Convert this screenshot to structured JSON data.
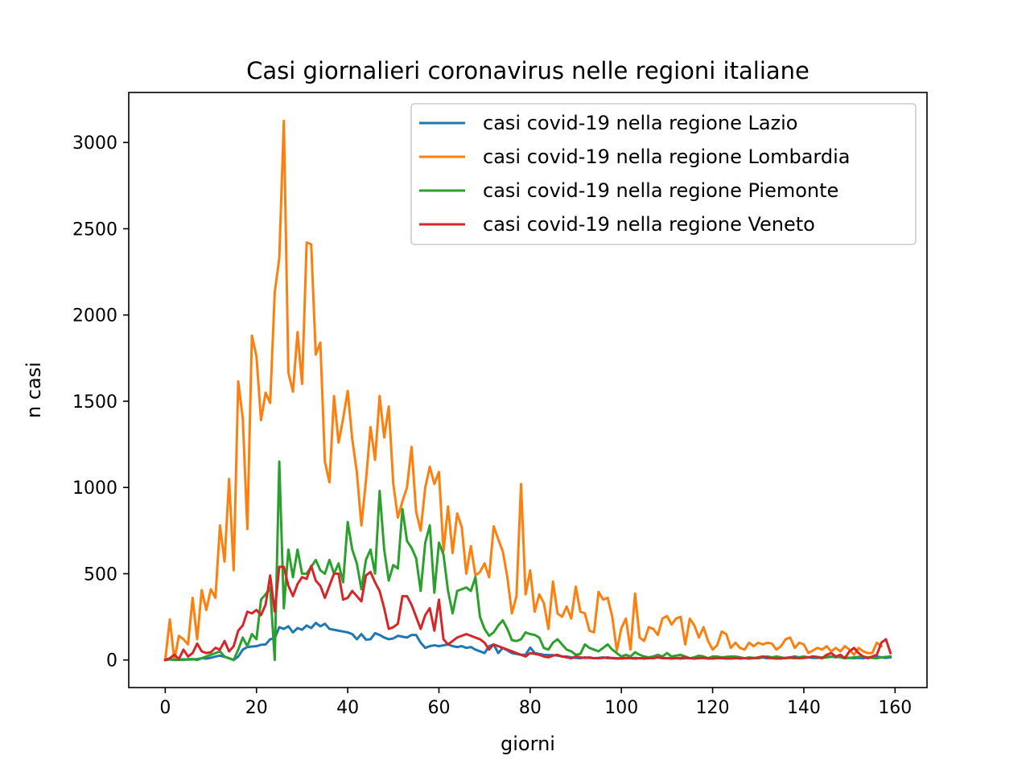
{
  "chart_data": {
    "type": "line",
    "title": "Casi giornalieri coronavirus nelle regioni italiane",
    "xlabel": "giorni",
    "ylabel": "n casi",
    "xlim": [
      -8,
      167
    ],
    "ylim": [
      -160,
      3290
    ],
    "xticks": [
      0,
      20,
      40,
      60,
      80,
      100,
      120,
      140,
      160
    ],
    "yticks": [
      0,
      500,
      1000,
      1500,
      2000,
      2500,
      3000
    ],
    "grid": false,
    "legend_position": "top-right",
    "series": [
      {
        "name": "casi covid-19 nella regione Lazio",
        "color": "#1f77b4",
        "values": [
          0,
          3,
          0,
          2,
          4,
          2,
          3,
          5,
          10,
          8,
          13,
          20,
          25,
          18,
          10,
          0,
          20,
          60,
          75,
          78,
          80,
          88,
          90,
          120,
          125,
          190,
          180,
          195,
          160,
          185,
          175,
          200,
          185,
          215,
          195,
          210,
          180,
          175,
          170,
          165,
          160,
          150,
          120,
          150,
          118,
          120,
          155,
          145,
          130,
          120,
          125,
          140,
          135,
          130,
          145,
          145,
          100,
          70,
          80,
          85,
          80,
          85,
          90,
          80,
          75,
          80,
          70,
          75,
          60,
          50,
          40,
          80,
          90,
          40,
          70,
          55,
          40,
          35,
          30,
          30,
          72,
          40,
          35,
          30,
          28,
          28,
          25,
          20,
          20,
          15,
          12,
          10,
          15,
          12,
          10,
          12,
          15,
          10,
          12,
          10,
          8,
          10,
          10,
          12,
          10,
          8,
          10,
          12,
          15,
          10,
          10,
          12,
          10,
          8,
          10,
          10,
          12,
          10,
          12,
          8,
          10,
          12,
          10,
          8,
          10,
          12,
          8,
          10,
          10,
          12,
          10,
          14,
          10,
          12,
          10,
          8,
          12,
          15,
          20,
          15,
          18,
          15,
          12,
          12,
          15,
          18,
          20,
          15,
          20,
          15,
          12,
          10,
          12,
          10,
          15,
          18,
          20,
          15,
          12,
          15
        ]
      },
      {
        "name": "casi covid-19 nella regione Lombardia",
        "color": "#ff7f0e",
        "values": [
          0,
          235,
          0,
          140,
          120,
          90,
          360,
          120,
          405,
          290,
          410,
          360,
          780,
          570,
          1050,
          520,
          1615,
          1400,
          760,
          1880,
          1760,
          1390,
          1550,
          1490,
          2130,
          2330,
          3125,
          1665,
          1555,
          1900,
          1600,
          2420,
          2410,
          1770,
          1840,
          1150,
          1030,
          1530,
          1260,
          1400,
          1560,
          1280,
          1090,
          780,
          1040,
          1350,
          1160,
          1530,
          1290,
          1470,
          1020,
          825,
          920,
          1000,
          1235,
          860,
          750,
          1000,
          1120,
          1020,
          1090,
          630,
          890,
          620,
          850,
          770,
          500,
          660,
          490,
          510,
          560,
          480,
          775,
          700,
          630,
          480,
          270,
          370,
          1020,
          380,
          520,
          280,
          380,
          330,
          180,
          455,
          270,
          250,
          310,
          240,
          425,
          280,
          270,
          170,
          160,
          395,
          350,
          360,
          250,
          55,
          185,
          240,
          60,
          385,
          130,
          110,
          190,
          180,
          145,
          240,
          255,
          205,
          240,
          250,
          90,
          240,
          200,
          130,
          190,
          110,
          60,
          85,
          165,
          150,
          70,
          100,
          70,
          60,
          100,
          80,
          100,
          90,
          100,
          95,
          60,
          80,
          120,
          130,
          70,
          100,
          90,
          40,
          55,
          70,
          60,
          80,
          50,
          70,
          50,
          80,
          60,
          30,
          70,
          50,
          40,
          40,
          100,
          80
        ]
      },
      {
        "name": "casi covid-19 nella regione Piemonte",
        "color": "#2ca02c",
        "values": [
          0,
          5,
          0,
          0,
          0,
          5,
          5,
          0,
          10,
          20,
          30,
          40,
          50,
          20,
          10,
          0,
          60,
          130,
          80,
          150,
          120,
          350,
          380,
          420,
          0,
          1150,
          300,
          640,
          480,
          640,
          500,
          500,
          540,
          580,
          520,
          500,
          580,
          500,
          560,
          450,
          800,
          640,
          560,
          410,
          580,
          640,
          500,
          980,
          640,
          460,
          550,
          530,
          875,
          690,
          650,
          590,
          400,
          680,
          780,
          390,
          680,
          610,
          400,
          270,
          400,
          410,
          420,
          400,
          480,
          250,
          180,
          140,
          160,
          200,
          230,
          180,
          115,
          110,
          120,
          160,
          150,
          145,
          130,
          70,
          60,
          100,
          120,
          90,
          60,
          50,
          30,
          35,
          90,
          70,
          60,
          50,
          70,
          90,
          60,
          40,
          20,
          30,
          20,
          45,
          30,
          20,
          15,
          20,
          30,
          20,
          40,
          20,
          25,
          30,
          20,
          10,
          15,
          25,
          20,
          10,
          20,
          20,
          15,
          18,
          20,
          20,
          15,
          10,
          15,
          12,
          10,
          18,
          20,
          15,
          20,
          15,
          10,
          12,
          10,
          15,
          20,
          15,
          20,
          18,
          12,
          15,
          18,
          20,
          15,
          10,
          12,
          15,
          18,
          20,
          15,
          12,
          10,
          15,
          18,
          20
        ]
      },
      {
        "name": "casi covid-19 nella regione Veneto",
        "color": "#d62728",
        "values": [
          0,
          10,
          30,
          5,
          60,
          20,
          40,
          95,
          50,
          40,
          45,
          70,
          60,
          110,
          50,
          80,
          170,
          200,
          280,
          270,
          290,
          260,
          320,
          490,
          280,
          540,
          540,
          430,
          370,
          440,
          480,
          470,
          545,
          460,
          430,
          360,
          430,
          500,
          500,
          350,
          360,
          400,
          370,
          340,
          490,
          510,
          450,
          400,
          300,
          180,
          190,
          210,
          370,
          370,
          320,
          250,
          180,
          260,
          300,
          170,
          350,
          120,
          90,
          110,
          130,
          140,
          150,
          140,
          130,
          120,
          100,
          60,
          90,
          80,
          70,
          60,
          50,
          40,
          30,
          20,
          40,
          35,
          30,
          20,
          15,
          25,
          30,
          20,
          15,
          10,
          20,
          15,
          12,
          15,
          10,
          10,
          12,
          15,
          10,
          8,
          10,
          12,
          10,
          8,
          10,
          10,
          12,
          10,
          15,
          12,
          10,
          8,
          10,
          12,
          15,
          10,
          8,
          10,
          12,
          10,
          8,
          10,
          12,
          10,
          8,
          10,
          12,
          10,
          8,
          10,
          15,
          20,
          15,
          10,
          8,
          10,
          12,
          15,
          12,
          10,
          12,
          15,
          20,
          15,
          10,
          30,
          40,
          20,
          30,
          10,
          50,
          70,
          40,
          20,
          10,
          20,
          30,
          100,
          120,
          40
        ]
      }
    ]
  }
}
